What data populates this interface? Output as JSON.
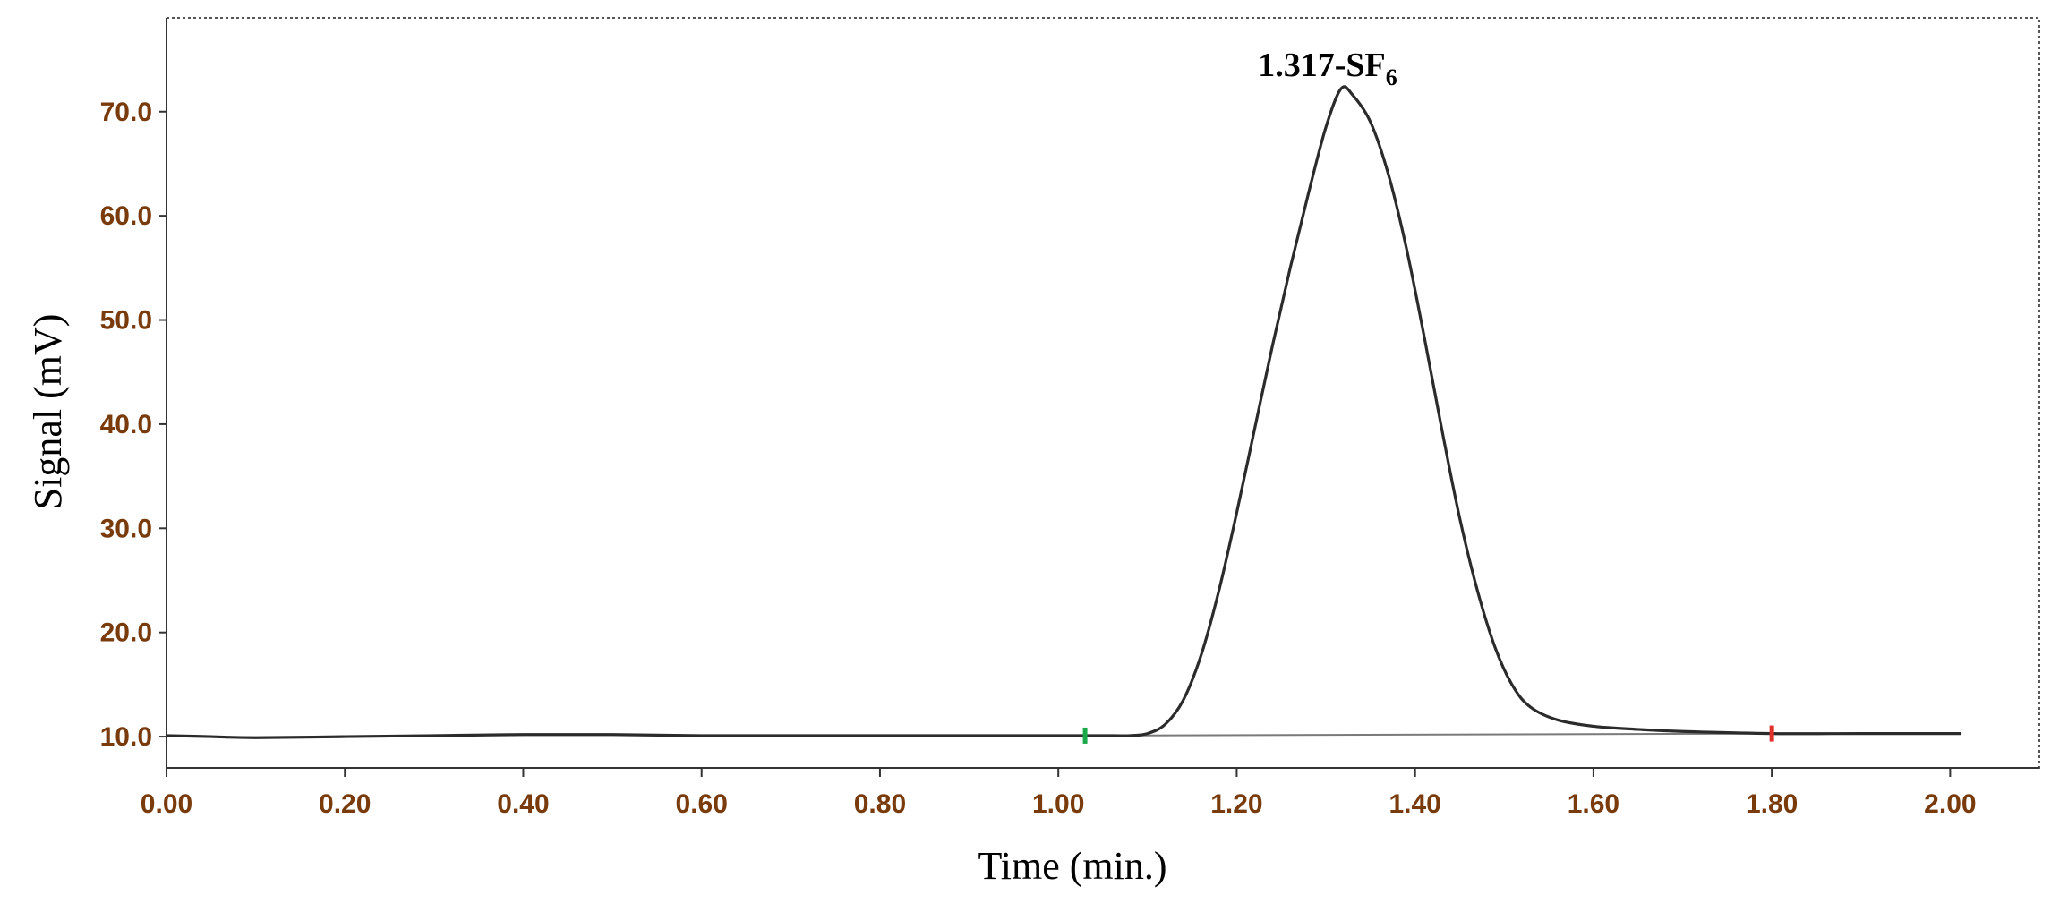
{
  "chart_data": {
    "type": "line",
    "title": "",
    "xlabel": "Time (min.)",
    "ylabel": "Signal (mV)",
    "xlim": [
      0.0,
      2.1
    ],
    "ylim": [
      7.0,
      79.0
    ],
    "x_ticks": [
      "0.00",
      "0.20",
      "0.40",
      "0.60",
      "0.80",
      "1.00",
      "1.20",
      "1.40",
      "1.60",
      "1.80",
      "2.00"
    ],
    "y_ticks": [
      "10.0",
      "20.0",
      "30.0",
      "40.0",
      "50.0",
      "60.0",
      "70.0"
    ],
    "grid": false,
    "series": [
      {
        "name": "",
        "color": "#2b2b2b",
        "x": [
          0.0,
          0.05,
          0.1,
          0.2,
          0.3,
          0.4,
          0.5,
          0.6,
          0.7,
          0.8,
          0.9,
          1.0,
          1.05,
          1.08,
          1.1,
          1.12,
          1.14,
          1.16,
          1.18,
          1.2,
          1.22,
          1.24,
          1.26,
          1.28,
          1.3,
          1.317,
          1.33,
          1.35,
          1.37,
          1.39,
          1.41,
          1.43,
          1.45,
          1.47,
          1.49,
          1.51,
          1.53,
          1.56,
          1.6,
          1.65,
          1.7,
          1.8,
          1.9,
          2.0,
          2.01
        ],
        "y": [
          10.1,
          10.0,
          9.9,
          10.0,
          10.1,
          10.2,
          10.2,
          10.1,
          10.1,
          10.1,
          10.1,
          10.1,
          10.1,
          10.1,
          10.3,
          11.2,
          13.5,
          17.8,
          24.0,
          31.5,
          39.5,
          47.5,
          55.0,
          62.0,
          68.5,
          72.2,
          71.6,
          69.0,
          64.0,
          57.0,
          48.5,
          39.5,
          31.0,
          24.0,
          18.5,
          14.8,
          12.8,
          11.6,
          11.0,
          10.7,
          10.5,
          10.3,
          10.3,
          10.3,
          10.3
        ]
      }
    ],
    "baseline": {
      "x": [
        1.03,
        1.8
      ],
      "y": [
        10.1,
        10.3
      ],
      "color": "#7a7a7a"
    },
    "integration_markers": [
      {
        "x": 1.03,
        "y": 10.1,
        "color": "#19a84a"
      },
      {
        "x": 1.8,
        "y": 10.3,
        "color": "#e0302a"
      }
    ],
    "annotations": [
      {
        "text": "1.317-SF",
        "subscript": "6",
        "x": 1.317,
        "y": 72.2
      }
    ]
  }
}
